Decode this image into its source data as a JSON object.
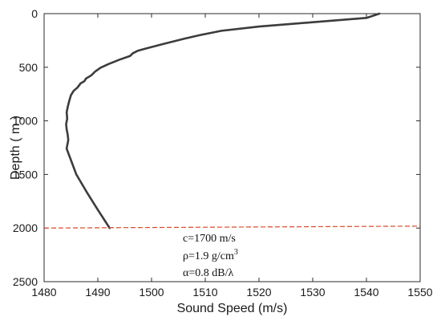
{
  "chart_data": {
    "type": "line",
    "title": "",
    "xlabel": "Sound Speed (m/s)",
    "ylabel": "Depth ( m )",
    "xlim": [
      1480,
      1550
    ],
    "ylim": [
      0,
      2500
    ],
    "y_inverted": true,
    "grid": false,
    "x_ticks": [
      1480,
      1490,
      1500,
      1510,
      1520,
      1530,
      1540,
      1550
    ],
    "y_ticks": [
      0,
      500,
      1000,
      1500,
      2000,
      2500
    ],
    "series": [
      {
        "name": "",
        "color": "#3c3c3c",
        "x": [
          1542.4,
          1540,
          1530,
          1520,
          1513,
          1509,
          1506,
          1504,
          1502,
          1500.5,
          1499,
          1497.5,
          1496.5,
          1496,
          1494,
          1492,
          1490.5,
          1489.5,
          1488.8,
          1487.8,
          1487.5,
          1486.8,
          1486.2,
          1485.5,
          1485,
          1484.7,
          1484.4,
          1484.2,
          1484.3,
          1484.1,
          1484.2,
          1484.4,
          1484.5,
          1484.3,
          1484.2,
          1485.1,
          1486,
          1488,
          1490,
          1492.2
        ],
        "y": [
          0,
          40,
          80,
          120,
          160,
          200,
          235,
          260,
          285,
          305,
          325,
          345,
          370,
          395,
          430,
          470,
          505,
          540,
          575,
          605,
          630,
          650,
          690,
          720,
          760,
          810,
          870,
          920,
          980,
          1030,
          1080,
          1130,
          1180,
          1230,
          1260,
          1380,
          1500,
          1670,
          1830,
          2000
        ]
      },
      {
        "name": "",
        "color": "#d84a2a",
        "style": "dashed",
        "x": [
          1480,
          1550
        ],
        "y": [
          2000,
          1982
        ]
      }
    ],
    "annotations": [
      {
        "text": "c=1700 m/s"
      },
      {
        "text": "ρ=1.9 g/cm",
        "superscript": "3"
      },
      {
        "text": "α=0.8 dB/λ"
      }
    ]
  }
}
